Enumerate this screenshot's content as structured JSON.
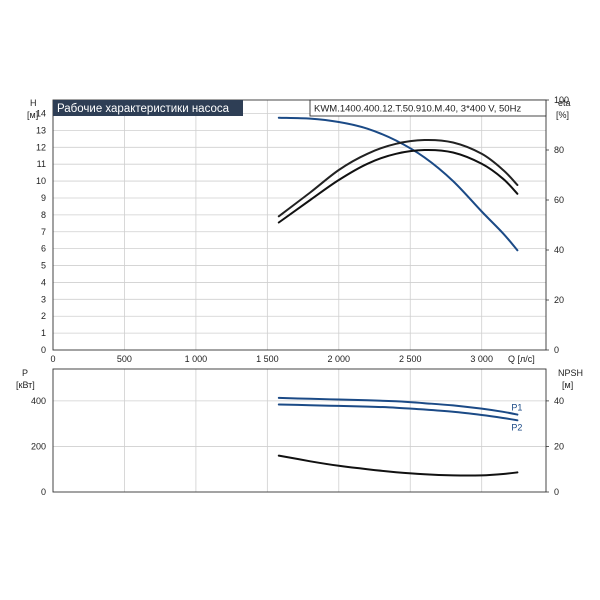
{
  "chart_data": [
    {
      "type": "line",
      "title": "Рабочие характеристики насоса",
      "subtitle": "KWM.1400.400.12.T.50.910.M.40, 3*400 V, 50Hz",
      "y_label": "H",
      "y_unit": "[м]",
      "y2_label": "eta",
      "y2_unit": "[%]",
      "x_label": "Q [л/с]",
      "xlim": [
        0,
        3450
      ],
      "ylim": [
        0,
        14.8
      ],
      "y2lim": [
        0,
        100
      ],
      "x_ticks": [
        0,
        500,
        1000,
        1500,
        2000,
        2500,
        3000
      ],
      "x_tick_labels": [
        "0",
        "500",
        "1 000",
        "1 500",
        "2 000",
        "2 500",
        "3 000"
      ],
      "y_ticks": [
        "0",
        "1",
        "2",
        "3",
        "4",
        "5",
        "6",
        "7",
        "8",
        "9",
        "10",
        "11",
        "12",
        "13",
        "14"
      ],
      "y2_ticks": [
        "0",
        "20",
        "40",
        "60",
        "80",
        "100"
      ],
      "series": [
        {
          "axis": "left",
          "color": "#1b4a86",
          "x": [
            1580,
            1800,
            2000,
            2200,
            2400,
            2600,
            2800,
            3000,
            3150,
            3250
          ],
          "values": [
            13.75,
            13.7,
            13.5,
            13.1,
            12.4,
            11.4,
            10.0,
            8.2,
            6.9,
            5.9
          ]
        },
        {
          "axis": "right",
          "color": "#222222",
          "x": [
            1580,
            1800,
            2000,
            2200,
            2400,
            2600,
            2800,
            3000,
            3150,
            3250
          ],
          "values": [
            53.5,
            63,
            72,
            78.5,
            82.5,
            84,
            83,
            78.5,
            72,
            66
          ]
        },
        {
          "axis": "right",
          "color": "#111111",
          "x": [
            1580,
            1800,
            2000,
            2200,
            2400,
            2600,
            2800,
            3000,
            3150,
            3250
          ],
          "values": [
            51,
            60,
            68,
            74.5,
            78.5,
            80,
            79,
            74.5,
            68.5,
            62.5
          ]
        }
      ]
    },
    {
      "type": "line",
      "y_label": "P",
      "y_unit": "[кВт]",
      "y2_label": "NPSH",
      "y2_unit": "[м]",
      "xlim": [
        0,
        3450
      ],
      "ylim": [
        0,
        540
      ],
      "y2lim": [
        0,
        54
      ],
      "y_ticks": [
        "0",
        "200",
        "400"
      ],
      "y2_ticks": [
        "0",
        "20",
        "40"
      ],
      "series": [
        {
          "name": "P1",
          "axis": "left",
          "color": "#1b4a86",
          "x": [
            1580,
            1800,
            2000,
            2200,
            2400,
            2600,
            2800,
            3000,
            3150,
            3250
          ],
          "values": [
            413,
            409,
            406,
            403,
            398,
            390,
            380,
            366,
            352,
            340
          ]
        },
        {
          "name": "P2",
          "axis": "left",
          "color": "#1b4a86",
          "x": [
            1580,
            1800,
            2000,
            2200,
            2400,
            2600,
            2800,
            3000,
            3150,
            3250
          ],
          "values": [
            384,
            381,
            378,
            375,
            370,
            362,
            352,
            338,
            325,
            315
          ]
        },
        {
          "axis": "right",
          "color": "#111111",
          "x": [
            1580,
            1800,
            2000,
            2200,
            2400,
            2600,
            2800,
            3000,
            3150,
            3250
          ],
          "values": [
            16,
            13.5,
            11.5,
            10,
            8.7,
            7.8,
            7.3,
            7.3,
            7.9,
            8.6
          ]
        }
      ]
    }
  ]
}
